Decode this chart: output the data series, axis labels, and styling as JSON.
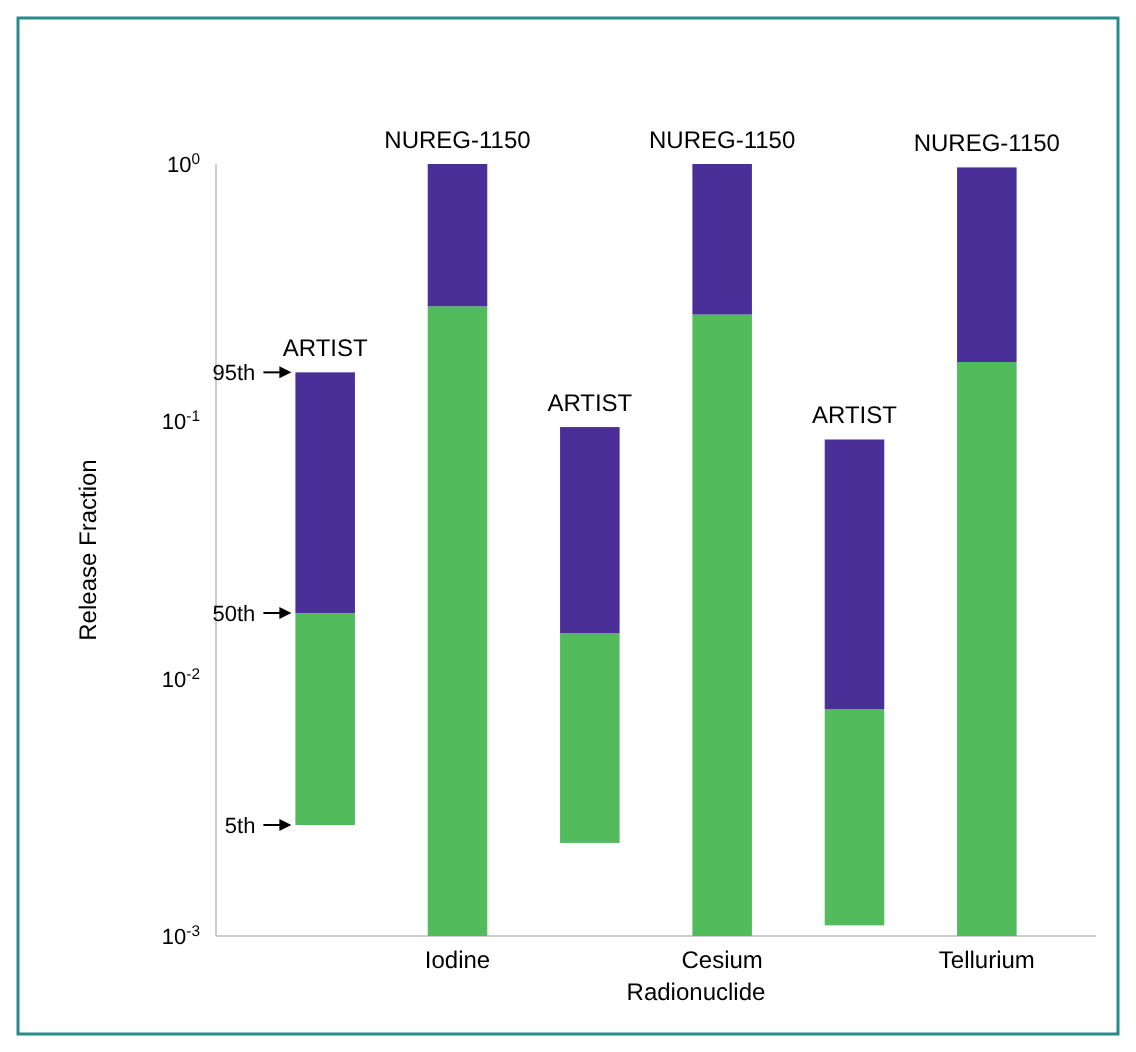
{
  "chart_data": {
    "type": "bar",
    "xlabel": "Radionuclide",
    "ylabel": "Release Fraction",
    "categories": [
      null,
      "Iodine",
      null,
      "Cesium",
      null,
      "Tellurium"
    ],
    "series": [
      {
        "color": "#52bb5c",
        "base": [
          0.0027,
          0.001,
          0.0023,
          0.001,
          0.0011,
          0.001
        ],
        "values": [
          0.0153,
          0.279,
          0.0127,
          0.259,
          0.0065,
          0.169
        ]
      },
      {
        "color": "#4a2f98",
        "base": [
          0.018,
          0.28,
          0.015,
          0.26,
          0.0076,
          0.17
        ],
        "values": [
          0.137,
          0.72,
          0.08,
          0.74,
          0.0774,
          0.8
        ],
        "value_labels": [
          "ARTIST",
          "NUREG-1150",
          "ARTIST",
          "NUREG-1150",
          "ARTIST",
          "NUREG-1150"
        ]
      }
    ],
    "log": "y",
    "ylim": [
      0.001,
      1
    ],
    "yticks": [
      {
        "value": 0.001,
        "label": "10$^{-3}$"
      },
      {
        "value": 0.01,
        "label": "10$^{-2}$"
      },
      {
        "value": 0.1,
        "label": "10$^{-1}$"
      },
      {
        "value": 1,
        "label": "10$^{0}$"
      }
    ],
    "grid": false,
    "annotations": [
      "95th",
      "50th",
      "5th"
    ]
  }
}
